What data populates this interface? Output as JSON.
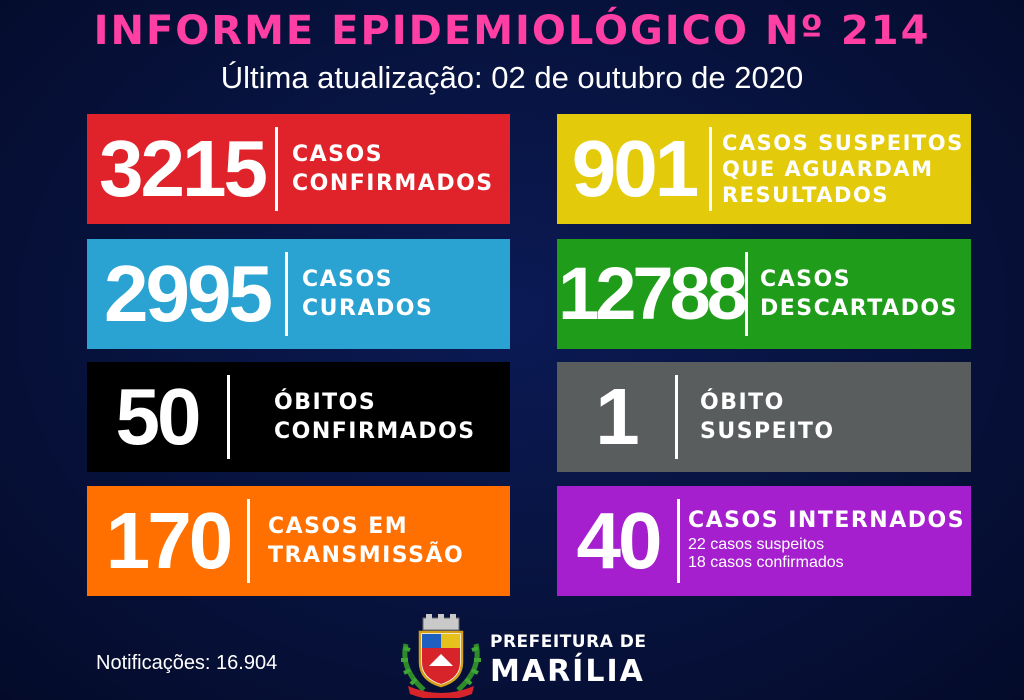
{
  "header": {
    "title": "INFORME EPIDEMIOLÓGICO Nº 214",
    "subtitle": "Última atualização: 02 de outubro de 2020"
  },
  "cards": [
    {
      "value": "3215",
      "lines": [
        "CASOS",
        "CONFIRMADOS"
      ],
      "color": "#e0232b"
    },
    {
      "value": "901",
      "lines": [
        "CASOS SUSPEITOS",
        "QUE AGUARDAM",
        "RESULTADOS"
      ],
      "color": "#e3ca0a"
    },
    {
      "value": "2995",
      "lines": [
        "CASOS",
        "CURADOS"
      ],
      "color": "#2aa3d3"
    },
    {
      "value": "12788",
      "lines": [
        "CASOS",
        "DESCARTADOS"
      ],
      "color": "#1f9c1a"
    },
    {
      "value": "50",
      "lines": [
        "ÓBITOS",
        "CONFIRMADOS"
      ],
      "color": "#000000"
    },
    {
      "value": "1",
      "lines": [
        "ÓBITO",
        "SUSPEITO"
      ],
      "color": "#5a5d5e"
    },
    {
      "value": "170",
      "lines": [
        "CASOS EM",
        "TRANSMISSÃO"
      ],
      "color": "#ff7000"
    },
    {
      "value": "40",
      "lines": [
        "CASOS INTERNADOS"
      ],
      "details": [
        "22 casos suspeitos",
        "18 casos confirmados"
      ],
      "color": "#a51fce"
    }
  ],
  "footer": {
    "notifications": "Notificações: 16.904",
    "logo_line1": "PREFEITURA DE",
    "logo_line2": "MARÍLIA"
  }
}
